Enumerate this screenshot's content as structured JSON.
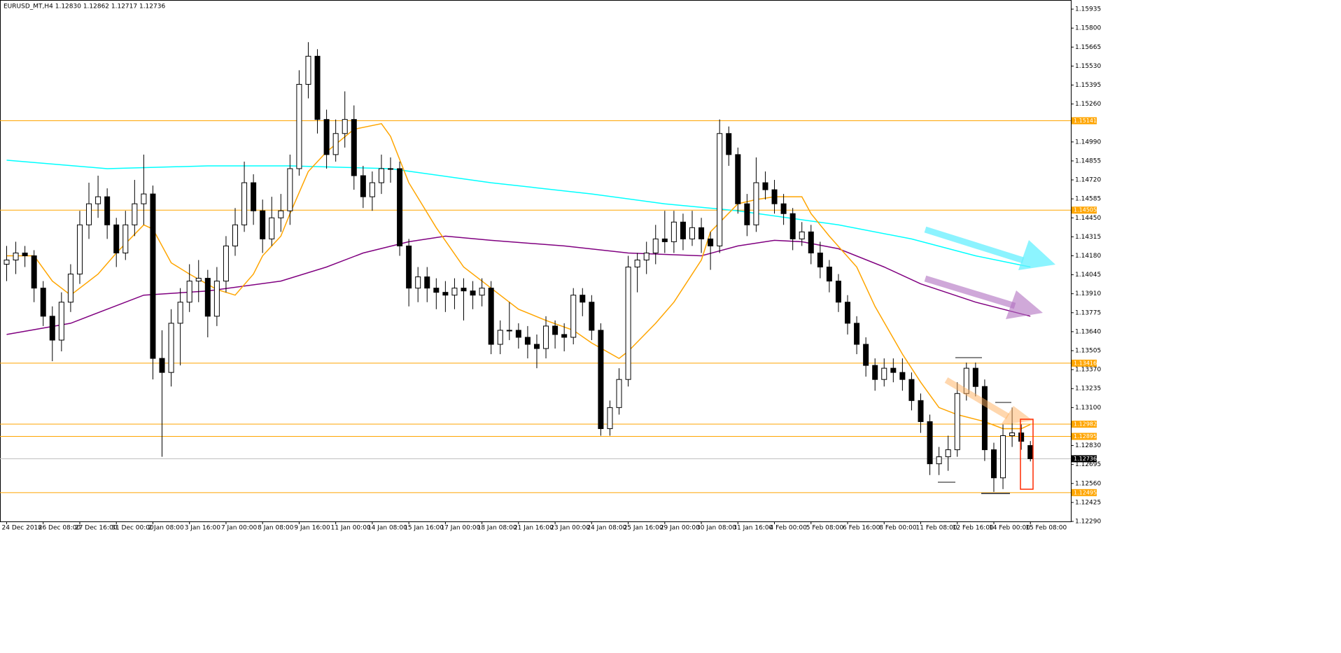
{
  "chart_data": {
    "type": "candlestick",
    "title": "EURUSD_MT,H4  1.12830 1.12862 1.12717 1.12736",
    "ylim": [
      1.1229,
      1.16
    ],
    "yticks": [
      {
        "value": 1.15935,
        "label": "1.15935"
      },
      {
        "value": 1.158,
        "label": "1.15800"
      },
      {
        "value": 1.15665,
        "label": "1.15665"
      },
      {
        "value": 1.1553,
        "label": "1.15530"
      },
      {
        "value": 1.15395,
        "label": "1.15395"
      },
      {
        "value": 1.1526,
        "label": "1.15260"
      },
      {
        "value": 1.1499,
        "label": "1.14990"
      },
      {
        "value": 1.14855,
        "label": "1.14855"
      },
      {
        "value": 1.1472,
        "label": "1.14720"
      },
      {
        "value": 1.14585,
        "label": "1.14585"
      },
      {
        "value": 1.1445,
        "label": "1.14450"
      },
      {
        "value": 1.14315,
        "label": "1.14315"
      },
      {
        "value": 1.1418,
        "label": "1.14180"
      },
      {
        "value": 1.14045,
        "label": "1.14045"
      },
      {
        "value": 1.1391,
        "label": "1.13910"
      },
      {
        "value": 1.13775,
        "label": "1.13775"
      },
      {
        "value": 1.1364,
        "label": "1.13640"
      },
      {
        "value": 1.13505,
        "label": "1.13505"
      },
      {
        "value": 1.1337,
        "label": "1.13370"
      },
      {
        "value": 1.13235,
        "label": "1.13235"
      },
      {
        "value": 1.131,
        "label": "1.13100"
      },
      {
        "value": 1.1283,
        "label": "1.12830"
      },
      {
        "value": 1.12695,
        "label": "1.12695"
      },
      {
        "value": 1.1256,
        "label": "1.12560"
      },
      {
        "value": 1.12425,
        "label": "1.12425"
      },
      {
        "value": 1.1229,
        "label": "1.12290"
      }
    ],
    "levels": [
      1.15141,
      1.14505,
      1.13416,
      1.12982,
      1.12895,
      1.12495
    ],
    "level_color": "#ffa500",
    "current_price": 1.12736,
    "categories": [
      "24 Dec 2018",
      null,
      null,
      null,
      "26 Dec 08:00",
      null,
      null,
      null,
      "27 Dec 16:00",
      null,
      null,
      null,
      "31 Dec 00:00",
      null,
      null,
      null,
      "2 Jan 08:00",
      null,
      null,
      null,
      "3 Jan 16:00",
      null,
      null,
      null,
      "7 Jan 00:00",
      null,
      null,
      null,
      "8 Jan 08:00",
      null,
      null,
      null,
      "9 Jan 16:00",
      null,
      null,
      null,
      "11 Jan 00:00",
      null,
      null,
      null,
      "14 Jan 08:00",
      null,
      null,
      null,
      "15 Jan 16:00",
      null,
      null,
      null,
      "17 Jan 00:00",
      null,
      null,
      null,
      "18 Jan 08:00",
      null,
      null,
      null,
      "21 Jan 16:00",
      null,
      null,
      null,
      "23 Jan 00:00",
      null,
      null,
      null,
      "24 Jan 08:00",
      null,
      null,
      null,
      "25 Jan 16:00",
      null,
      null,
      null,
      "29 Jan 00:00",
      null,
      null,
      null,
      "30 Jan 08:00",
      null,
      null,
      null,
      "31 Jan 16:00",
      null,
      null,
      null,
      "4 Feb 00:00",
      null,
      null,
      null,
      "5 Feb 08:00",
      null,
      null,
      null,
      "6 Feb 16:00",
      null,
      null,
      null,
      "8 Feb 00:00",
      null,
      null,
      null,
      "11 Feb 08:00",
      null,
      null,
      null,
      "12 Feb 16:00",
      null,
      null,
      null,
      "14 Feb 00:00",
      null,
      null,
      null,
      "15 Feb 08:00"
    ],
    "candles": [
      [
        1.1412,
        1.1425,
        1.14,
        1.1415
      ],
      [
        1.1415,
        1.1428,
        1.1405,
        1.142
      ],
      [
        1.142,
        1.1425,
        1.141,
        1.1418
      ],
      [
        1.1418,
        1.1422,
        1.1385,
        1.1395
      ],
      [
        1.1395,
        1.14,
        1.1368,
        1.1375
      ],
      [
        1.1375,
        1.1382,
        1.1343,
        1.1358
      ],
      [
        1.1358,
        1.1392,
        1.135,
        1.1385
      ],
      [
        1.1385,
        1.1412,
        1.1378,
        1.1405
      ],
      [
        1.1405,
        1.145,
        1.1398,
        1.144
      ],
      [
        1.144,
        1.147,
        1.143,
        1.1455
      ],
      [
        1.1455,
        1.1475,
        1.1445,
        1.146
      ],
      [
        1.146,
        1.1466,
        1.143,
        1.144
      ],
      [
        1.144,
        1.1445,
        1.141,
        1.142
      ],
      [
        1.142,
        1.145,
        1.1415,
        1.144
      ],
      [
        1.144,
        1.1472,
        1.1432,
        1.1455
      ],
      [
        1.1455,
        1.149,
        1.144,
        1.1462
      ],
      [
        1.1462,
        1.1468,
        1.133,
        1.1345
      ],
      [
        1.1345,
        1.1365,
        1.1275,
        1.1335
      ],
      [
        1.1335,
        1.138,
        1.1325,
        1.137
      ],
      [
        1.137,
        1.1395,
        1.134,
        1.1385
      ],
      [
        1.1385,
        1.1412,
        1.1378,
        1.14
      ],
      [
        1.14,
        1.1415,
        1.1385,
        1.1402
      ],
      [
        1.1402,
        1.1408,
        1.136,
        1.1375
      ],
      [
        1.1375,
        1.141,
        1.1368,
        1.14
      ],
      [
        1.14,
        1.1432,
        1.1392,
        1.1425
      ],
      [
        1.1425,
        1.1452,
        1.1418,
        1.144
      ],
      [
        1.144,
        1.1485,
        1.1435,
        1.147
      ],
      [
        1.147,
        1.1476,
        1.144,
        1.145
      ],
      [
        1.145,
        1.1458,
        1.142,
        1.143
      ],
      [
        1.143,
        1.146,
        1.1425,
        1.1445
      ],
      [
        1.1445,
        1.1462,
        1.1435,
        1.145
      ],
      [
        1.145,
        1.149,
        1.144,
        1.148
      ],
      [
        1.148,
        1.155,
        1.1475,
        1.154
      ],
      [
        1.154,
        1.157,
        1.153,
        1.156
      ],
      [
        1.156,
        1.1565,
        1.1505,
        1.1515
      ],
      [
        1.1515,
        1.1522,
        1.148,
        1.149
      ],
      [
        1.149,
        1.1515,
        1.1485,
        1.1505
      ],
      [
        1.1505,
        1.1535,
        1.1495,
        1.1515
      ],
      [
        1.1515,
        1.1525,
        1.1465,
        1.1475
      ],
      [
        1.1475,
        1.1482,
        1.1452,
        1.146
      ],
      [
        1.146,
        1.1478,
        1.145,
        1.147
      ],
      [
        1.147,
        1.149,
        1.1462,
        1.148
      ],
      [
        1.148,
        1.1488,
        1.147,
        1.148
      ],
      [
        1.148,
        1.1485,
        1.1418,
        1.1425
      ],
      [
        1.1425,
        1.143,
        1.1382,
        1.1395
      ],
      [
        1.1395,
        1.141,
        1.1385,
        1.1403
      ],
      [
        1.1403,
        1.141,
        1.1385,
        1.1395
      ],
      [
        1.1395,
        1.1402,
        1.138,
        1.1392
      ],
      [
        1.1392,
        1.14,
        1.1378,
        1.139
      ],
      [
        1.139,
        1.1402,
        1.138,
        1.1395
      ],
      [
        1.1395,
        1.1402,
        1.1372,
        1.1393
      ],
      [
        1.1393,
        1.14,
        1.138,
        1.139
      ],
      [
        1.139,
        1.1402,
        1.1382,
        1.1395
      ],
      [
        1.1395,
        1.14,
        1.1348,
        1.1355
      ],
      [
        1.1355,
        1.1372,
        1.1348,
        1.1365
      ],
      [
        1.1365,
        1.1385,
        1.1358,
        1.1365
      ],
      [
        1.1365,
        1.137,
        1.1352,
        1.136
      ],
      [
        1.136,
        1.1368,
        1.1345,
        1.1355
      ],
      [
        1.1355,
        1.1362,
        1.1338,
        1.1352
      ],
      [
        1.1352,
        1.1375,
        1.1345,
        1.1368
      ],
      [
        1.1368,
        1.1372,
        1.1352,
        1.1362
      ],
      [
        1.1362,
        1.137,
        1.135,
        1.136
      ],
      [
        1.136,
        1.1395,
        1.1355,
        1.139
      ],
      [
        1.139,
        1.1395,
        1.1375,
        1.1385
      ],
      [
        1.1385,
        1.139,
        1.1358,
        1.1365
      ],
      [
        1.1365,
        1.137,
        1.129,
        1.1295
      ],
      [
        1.1295,
        1.1315,
        1.129,
        1.131
      ],
      [
        1.131,
        1.1338,
        1.1305,
        1.133
      ],
      [
        1.133,
        1.1418,
        1.1325,
        1.141
      ],
      [
        1.141,
        1.142,
        1.1392,
        1.1415
      ],
      [
        1.1415,
        1.1428,
        1.1405,
        1.142
      ],
      [
        1.142,
        1.144,
        1.1412,
        1.143
      ],
      [
        1.143,
        1.145,
        1.142,
        1.1428
      ],
      [
        1.1428,
        1.145,
        1.142,
        1.1442
      ],
      [
        1.1442,
        1.1448,
        1.1422,
        1.143
      ],
      [
        1.143,
        1.145,
        1.1425,
        1.1438
      ],
      [
        1.1438,
        1.1445,
        1.142,
        1.143
      ],
      [
        1.143,
        1.1435,
        1.1408,
        1.1425
      ],
      [
        1.1425,
        1.1515,
        1.142,
        1.1505
      ],
      [
        1.1505,
        1.151,
        1.1482,
        1.149
      ],
      [
        1.149,
        1.1495,
        1.1448,
        1.1455
      ],
      [
        1.1455,
        1.1462,
        1.1432,
        1.144
      ],
      [
        1.144,
        1.1488,
        1.1435,
        1.147
      ],
      [
        1.147,
        1.1478,
        1.1458,
        1.1465
      ],
      [
        1.1465,
        1.1472,
        1.1448,
        1.1455
      ],
      [
        1.1455,
        1.1462,
        1.144,
        1.1448
      ],
      [
        1.1448,
        1.1452,
        1.1422,
        1.143
      ],
      [
        1.143,
        1.1442,
        1.1425,
        1.1435
      ],
      [
        1.1435,
        1.144,
        1.1412,
        1.142
      ],
      [
        1.142,
        1.1428,
        1.1402,
        1.141
      ],
      [
        1.141,
        1.1415,
        1.1392,
        1.14
      ],
      [
        1.14,
        1.1405,
        1.1378,
        1.1385
      ],
      [
        1.1385,
        1.139,
        1.1362,
        1.137
      ],
      [
        1.137,
        1.1375,
        1.1348,
        1.1355
      ],
      [
        1.1355,
        1.136,
        1.1332,
        1.134
      ],
      [
        1.134,
        1.1345,
        1.1322,
        1.133
      ],
      [
        1.133,
        1.1345,
        1.1325,
        1.1338
      ],
      [
        1.1338,
        1.1345,
        1.1328,
        1.1335
      ],
      [
        1.1335,
        1.1345,
        1.1322,
        1.133
      ],
      [
        1.133,
        1.1335,
        1.1308,
        1.1315
      ],
      [
        1.1315,
        1.132,
        1.1292,
        1.13
      ],
      [
        1.13,
        1.1305,
        1.1262,
        1.127
      ],
      [
        1.127,
        1.1282,
        1.1262,
        1.1275
      ],
      [
        1.1275,
        1.129,
        1.1265,
        1.128
      ],
      [
        1.128,
        1.1328,
        1.1275,
        1.132
      ],
      [
        1.132,
        1.1342,
        1.1315,
        1.1338
      ],
      [
        1.1338,
        1.1342,
        1.1318,
        1.1325
      ],
      [
        1.1325,
        1.133,
        1.1272,
        1.128
      ],
      [
        1.128,
        1.1285,
        1.125,
        1.126
      ],
      [
        1.126,
        1.1298,
        1.1252,
        1.129
      ],
      [
        1.129,
        1.131,
        1.1282,
        1.1292
      ],
      [
        1.1292,
        1.1298,
        1.128,
        1.1286
      ],
      [
        1.1283,
        1.12862,
        1.12717,
        1.12736
      ]
    ],
    "indicators": [
      {
        "color": "#00ffff",
        "x": [
          0,
          11,
          22,
          31,
          42,
          53,
          64,
          72,
          80,
          91,
          99,
          106,
          112
        ],
        "values": [
          1.1486,
          1.148,
          1.1482,
          1.1482,
          1.148,
          1.147,
          1.1462,
          1.1455,
          1.145,
          1.144,
          1.143,
          1.1418,
          1.141
        ]
      },
      {
        "color": "#800080",
        "x": [
          0,
          7,
          15,
          22,
          30,
          35,
          39,
          44,
          48,
          53,
          61,
          68,
          76,
          80,
          84,
          87,
          91,
          96,
          100,
          106,
          112
        ],
        "values": [
          1.1362,
          1.137,
          1.139,
          1.1393,
          1.14,
          1.141,
          1.142,
          1.1428,
          1.1432,
          1.1429,
          1.1425,
          1.142,
          1.1418,
          1.1425,
          1.1429,
          1.1428,
          1.1423,
          1.141,
          1.1398,
          1.1385,
          1.1375
        ]
      },
      {
        "color": "#ffa500",
        "x": [
          0,
          3,
          5,
          7,
          10,
          12,
          15,
          16,
          18,
          20,
          23,
          25,
          27,
          28,
          30,
          31,
          33,
          35,
          38,
          41,
          42,
          44,
          47,
          50,
          53,
          56,
          59,
          62,
          64,
          67,
          68,
          71,
          73,
          76,
          77,
          80,
          82,
          84,
          87,
          88,
          90,
          93,
          95,
          98,
          100,
          102,
          104,
          107,
          109,
          111,
          112
        ],
        "values": [
          1.1418,
          1.1418,
          1.14,
          1.139,
          1.1405,
          1.142,
          1.144,
          1.1437,
          1.1413,
          1.1405,
          1.1394,
          1.139,
          1.1405,
          1.1418,
          1.1432,
          1.1448,
          1.1478,
          1.1492,
          1.1508,
          1.1512,
          1.1503,
          1.147,
          1.1438,
          1.141,
          1.1395,
          1.138,
          1.1372,
          1.1365,
          1.1356,
          1.1345,
          1.135,
          1.137,
          1.1385,
          1.1415,
          1.1435,
          1.1455,
          1.1458,
          1.146,
          1.146,
          1.1448,
          1.1432,
          1.141,
          1.1382,
          1.1348,
          1.1328,
          1.131,
          1.1305,
          1.13,
          1.1295,
          1.1295,
          1.1298
        ]
      }
    ]
  }
}
